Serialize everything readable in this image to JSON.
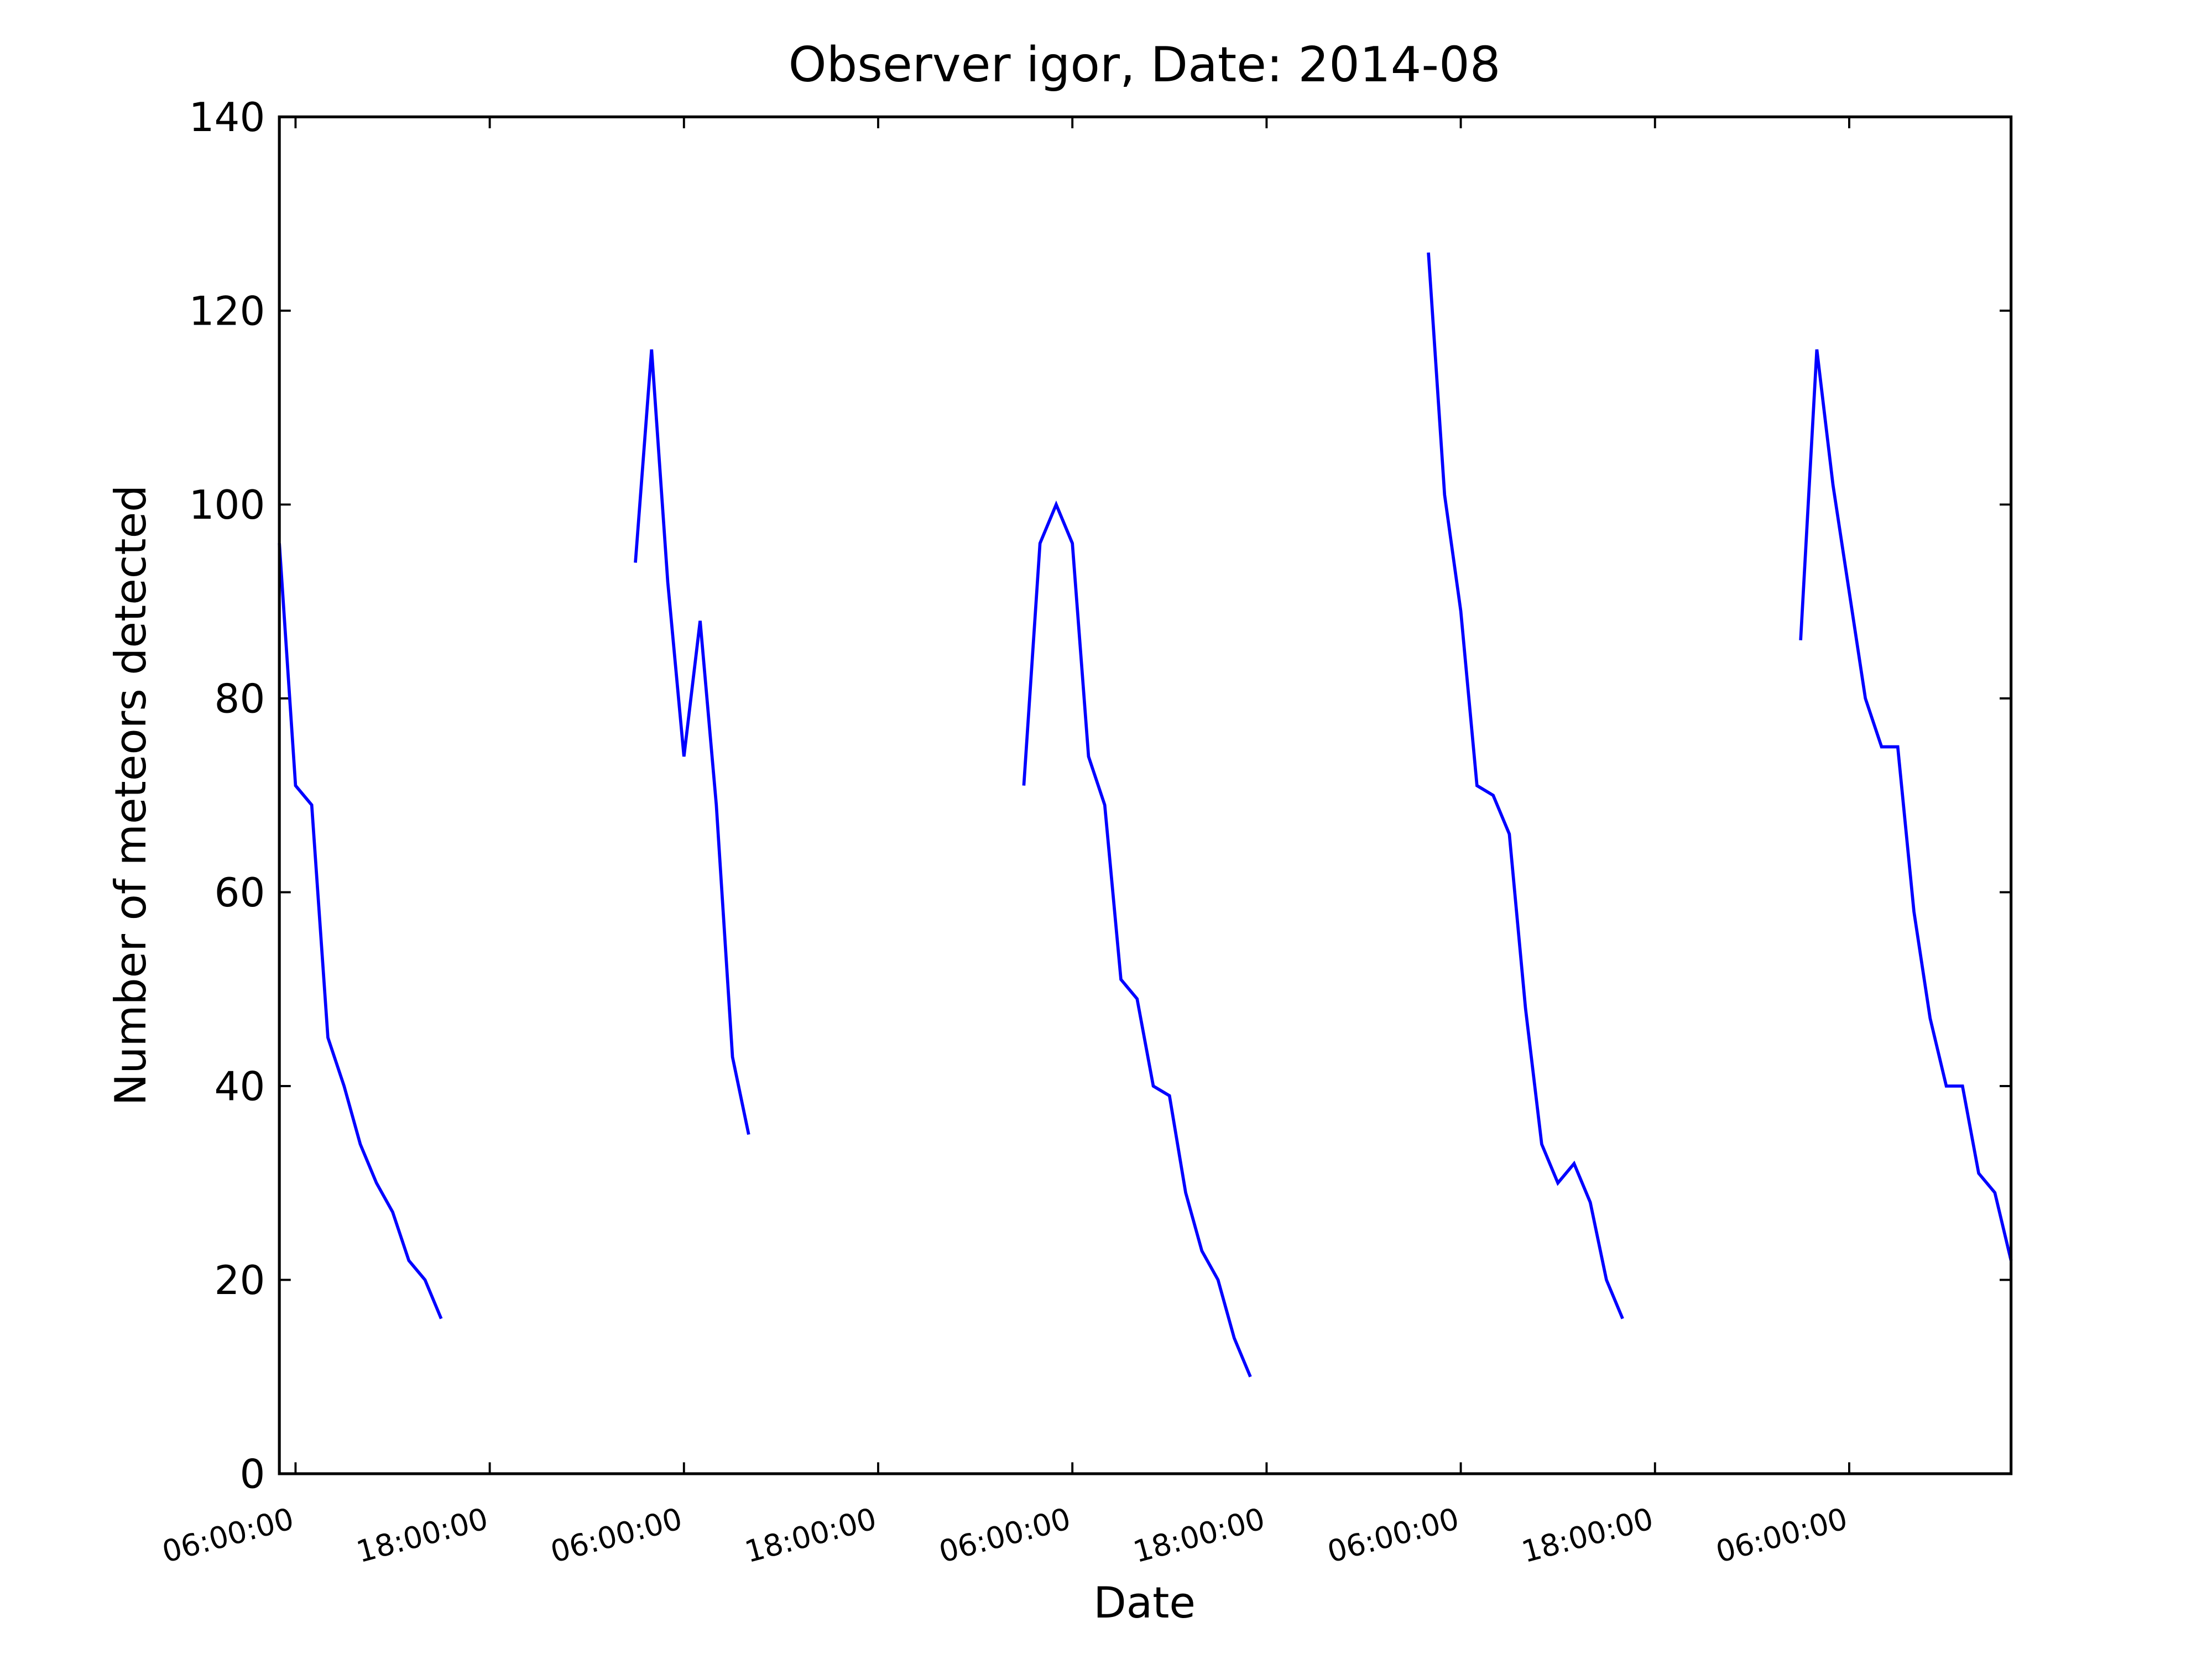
{
  "chart_data": {
    "type": "line",
    "title": "Observer igor, Date: 2014-08",
    "xlabel": "Date",
    "ylabel": "Number of meteors detected",
    "x": [
      5,
      6,
      7,
      8,
      9,
      10,
      11,
      12,
      13,
      14,
      15,
      16,
      27,
      28,
      29,
      30,
      31,
      32,
      33,
      34,
      35,
      51,
      52,
      53,
      54,
      55,
      56,
      57,
      58,
      59,
      60,
      61,
      62,
      63,
      64,
      65,
      66,
      76,
      77,
      78,
      79,
      80,
      81,
      82,
      83,
      84,
      85,
      86,
      87,
      88,
      89,
      99,
      100,
      101,
      102,
      103,
      104,
      105,
      106,
      107,
      108,
      109,
      110,
      111,
      112
    ],
    "series": [
      {
        "name": "igor",
        "color": "#0000ff",
        "values": [
          96,
          71,
          69,
          45,
          40,
          34,
          30,
          27,
          22,
          20,
          16,
          null,
          94,
          116,
          92,
          74,
          88,
          69,
          43,
          35,
          null,
          71,
          96,
          100,
          96,
          74,
          69,
          51,
          49,
          40,
          39,
          29,
          23,
          20,
          14,
          10,
          null,
          126,
          101,
          89,
          71,
          70,
          66,
          48,
          34,
          30,
          32,
          28,
          20,
          16,
          null,
          86,
          116,
          102,
          91,
          80,
          75,
          75,
          58,
          47,
          40,
          40,
          31,
          29,
          22
        ]
      }
    ],
    "xlim": [
      5,
      112
    ],
    "xticks": [
      {
        "value": 6,
        "label": "06:00:00"
      },
      {
        "value": 18,
        "label": "18:00:00"
      },
      {
        "value": 30,
        "label": "06:00:00"
      },
      {
        "value": 42,
        "label": "18:00:00"
      },
      {
        "value": 54,
        "label": "06:00:00"
      },
      {
        "value": 66,
        "label": "18:00:00"
      },
      {
        "value": 78,
        "label": "06:00:00"
      },
      {
        "value": 90,
        "label": "18:00:00"
      },
      {
        "value": 102,
        "label": "06:00:00"
      }
    ],
    "ylim": [
      0,
      140
    ],
    "yticks": [
      0,
      20,
      40,
      60,
      80,
      100,
      120,
      140
    ],
    "grid": false
  }
}
